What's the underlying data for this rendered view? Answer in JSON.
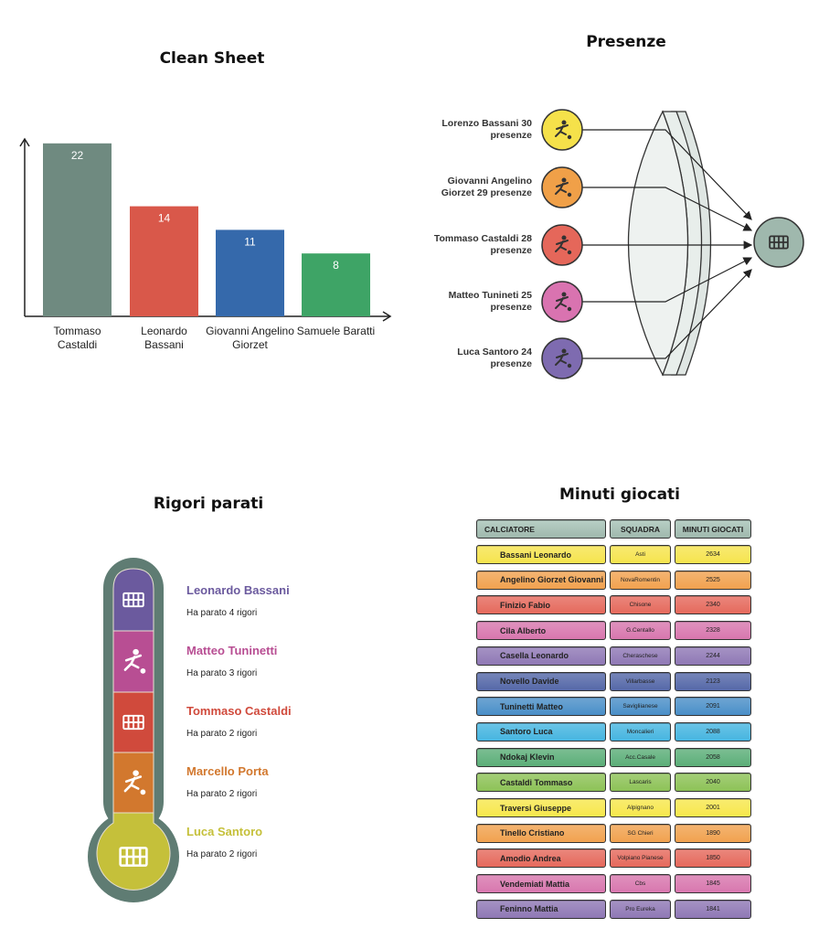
{
  "chart_data": [
    {
      "type": "bar",
      "title": "Clean Sheet",
      "categories": [
        "Tommaso Castaldi",
        "Leonardo Bassani",
        "Giovanni Angelino Giorzet",
        "Samuele Baratti"
      ],
      "values": [
        22,
        14,
        11,
        8
      ],
      "colors": [
        "#6f8a80",
        "#d9584a",
        "#3569ab",
        "#3ea466"
      ],
      "ylim": [
        0,
        25
      ]
    },
    {
      "type": "diagram",
      "title": "Presenze",
      "items": [
        {
          "label": "Lorenzo Bassani 30 presenze",
          "value": 30,
          "color": "#f5e14a"
        },
        {
          "label": "Giovanni Angelino Giorzet 29 presenze",
          "value": 29,
          "color": "#f0a048"
        },
        {
          "label": "Tommaso Castaldi 28 presenze",
          "value": 28,
          "color": "#e5675a"
        },
        {
          "label": "Matteo Tunineti 25 presenze",
          "value": 25,
          "color": "#d973b0"
        },
        {
          "label": "Luca Santoro 24 presenze",
          "value": 24,
          "color": "#7e6bb0"
        }
      ]
    },
    {
      "type": "infographic",
      "title": "Rigori parati",
      "items": [
        {
          "name": "Leonardo Bassani",
          "desc": "Ha parato 4 rigori",
          "value": 4,
          "color": "#6b5a9e",
          "icon": "goal-icon"
        },
        {
          "name": "Matteo Tuninetti",
          "desc": "Ha parato 3 rigori",
          "value": 3,
          "color": "#b84e93",
          "icon": "player-kick-icon"
        },
        {
          "name": "Tommaso Castaldi",
          "desc": "Ha parato 2 rigori",
          "value": 2,
          "color": "#d04a3c",
          "icon": "goal-icon"
        },
        {
          "name": "Marcello Porta",
          "desc": "Ha parato 2 rigori",
          "value": 2,
          "color": "#d2782e",
          "icon": "player-kick-icon"
        },
        {
          "name": "Luca Santoro",
          "desc": "Ha parato 2 rigori",
          "value": 2,
          "color": "#c5c03a",
          "icon": "goal-icon"
        }
      ]
    },
    {
      "type": "table",
      "title": "Minuti giocati",
      "columns": [
        "CALCIATORE",
        "SQUADRA",
        "MINUTI GIOCATI"
      ],
      "rows": [
        [
          "Bassani Leonardo",
          "Asti",
          "2634",
          "#f6e44e"
        ],
        [
          "Angelino Giorzet Giovanni",
          "NovaRomentin",
          "2525",
          "#f1a24f"
        ],
        [
          "Finizio Fabio",
          "Chisone",
          "2340",
          "#e5695c"
        ],
        [
          "Cila Alberto",
          "G.Centallo",
          "2328",
          "#d877ae"
        ],
        [
          "Casella Leonardo",
          "Cheraschese",
          "2244",
          "#8f78b5"
        ],
        [
          "Novello Davide",
          "Villarbasse",
          "2123",
          "#5568a8"
        ],
        [
          "Tuninetti Matteo",
          "Savigliianese",
          "2091",
          "#4a8fc8"
        ],
        [
          "Santoro Luca",
          "Moncalieri",
          "2088",
          "#46b5e0"
        ],
        [
          "Ndokaj Klevin",
          "Acc.Casale",
          "2058",
          "#5bae78"
        ],
        [
          "Castaldi Tommaso",
          "Lascaris",
          "2040",
          "#8dc257"
        ],
        [
          "Traversi Giuseppe",
          "Alpignano",
          "2001",
          "#f7e74c"
        ],
        [
          "Tinello Cristiano",
          "SG Chieri",
          "1890",
          "#f1a24f"
        ],
        [
          "Amodio Andrea",
          "Volpiano Pianese",
          "1850",
          "#e5695c"
        ],
        [
          "Vendemiati Mattia",
          "Cbs",
          "1845",
          "#d877ae"
        ],
        [
          "Feninno Mattia",
          "Pro Eureka",
          "1841",
          "#8f78b5"
        ]
      ]
    }
  ]
}
